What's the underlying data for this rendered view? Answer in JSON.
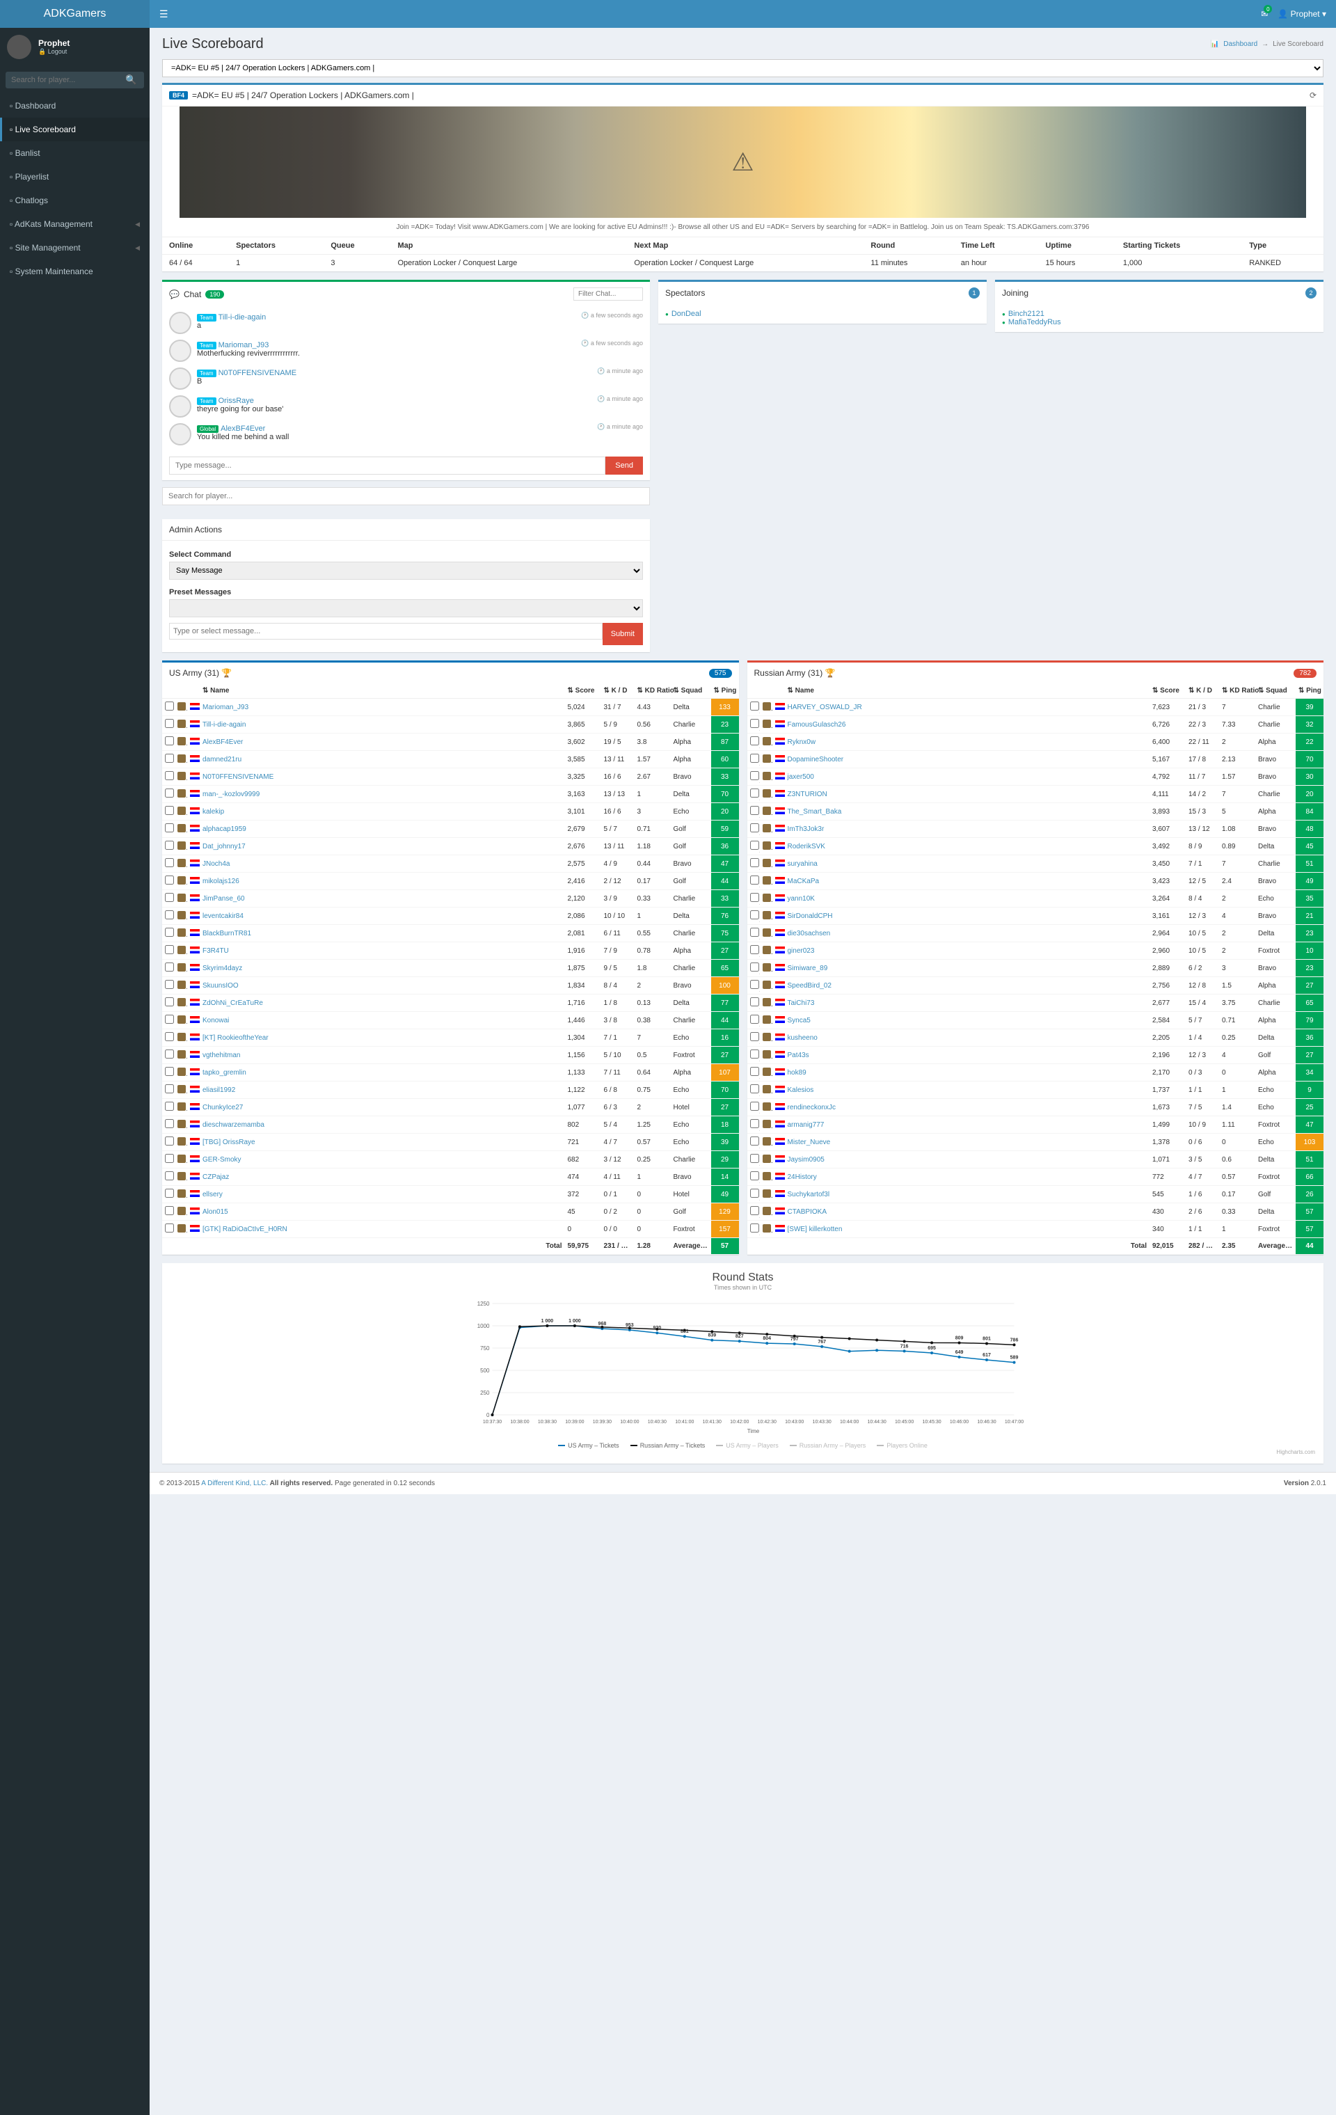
{
  "brand": "ADKGamers",
  "user": {
    "name": "Prophet",
    "logout": "Logout"
  },
  "top": {
    "user_drop": "Prophet",
    "mail_count": "0"
  },
  "search_ph": "Search for player...",
  "nav": [
    {
      "label": "Dashboard",
      "arrow": false
    },
    {
      "label": "Live Scoreboard",
      "arrow": false,
      "active": true
    },
    {
      "label": "Banlist",
      "arrow": false
    },
    {
      "label": "Playerlist",
      "arrow": false
    },
    {
      "label": "Chatlogs",
      "arrow": false
    },
    {
      "label": "AdKats Management",
      "arrow": true
    },
    {
      "label": "Site Management",
      "arrow": true
    },
    {
      "label": "System Maintenance",
      "arrow": false
    }
  ],
  "page_title": "Live Scoreboard",
  "crumb": {
    "home": "Dashboard",
    "here": "Live Scoreboard"
  },
  "server": {
    "select": "=ADK= EU #5 | 24/7 Operation Lockers | ADKGamers.com |",
    "tag": "BF4",
    "title": "=ADK= EU #5 | 24/7 Operation Lockers | ADKGamers.com |",
    "info": "Join =ADK= Today! Visit www.ADKGamers.com | We are looking for active EU Admins!!! :)- Browse all other US and EU =ADK= Servers by searching for =ADK= in Battlelog. Join us on Team Speak: TS.ADKGamers.com:3796",
    "headers": [
      "Online",
      "Spectators",
      "Queue",
      "Map",
      "Next Map",
      "Round",
      "Time Left",
      "Uptime",
      "Starting Tickets",
      "Type"
    ],
    "values": [
      "64 / 64",
      "1",
      "3",
      "Operation Locker / Conquest Large",
      "Operation Locker / Conquest Large",
      "11 minutes",
      "an hour",
      "15 hours",
      "1,000",
      "RANKED"
    ]
  },
  "chat": {
    "title": "Chat",
    "count": "190",
    "filter_ph": "Filter Chat...",
    "input_ph": "Type message...",
    "send": "Send",
    "player_search_ph": "Search for player...",
    "messages": [
      {
        "tag": "Team",
        "name": "Till-i-die-again",
        "text": "a",
        "time": "a few seconds ago"
      },
      {
        "tag": "Team",
        "name": "Marioman_J93",
        "text": "Motherfucking reviverrrrrrrrrrrr.",
        "time": "a few seconds ago"
      },
      {
        "tag": "Team",
        "name": "N0T0FFENSIVENAME",
        "text": "B",
        "time": "a minute ago"
      },
      {
        "tag": "Team",
        "name": "OrissRaye",
        "text": "theyre going for our base'",
        "time": "a minute ago"
      },
      {
        "tag": "Global",
        "name": "AlexBF4Ever",
        "text": "You killed me behind a wall",
        "time": "a minute ago"
      }
    ]
  },
  "spectators": {
    "title": "Spectators",
    "count": "1",
    "list": [
      "DonDeal"
    ]
  },
  "joining": {
    "title": "Joining",
    "count": "2",
    "list": [
      "Binch2121",
      "MafiaTeddyRus"
    ]
  },
  "admin": {
    "title": "Admin Actions",
    "cmd_label": "Select Command",
    "cmd": "Say Message",
    "preset_label": "Preset Messages",
    "preset": "",
    "msg_ph": "Type or select message...",
    "submit": "Submit"
  },
  "teams": {
    "us": {
      "name": "US Army (31)",
      "tickets": "575",
      "cols": [
        "",
        "",
        "",
        "Name",
        "Score",
        "K / D",
        "KD Ratio",
        "Squad",
        "Ping"
      ],
      "rows": [
        [
          "Marioman_J93",
          "5,024",
          "31 / 7",
          "4.43",
          "Delta",
          "133",
          "high"
        ],
        [
          "Till-i-die-again",
          "3,865",
          "5 / 9",
          "0.56",
          "Charlie",
          "23",
          ""
        ],
        [
          "AlexBF4Ever",
          "3,602",
          "19 / 5",
          "3.8",
          "Alpha",
          "87",
          ""
        ],
        [
          "damned21ru",
          "3,585",
          "13 / 11",
          "1.57",
          "Alpha",
          "60",
          ""
        ],
        [
          "N0T0FFENSIVENAME",
          "3,325",
          "16 / 6",
          "2.67",
          "Bravo",
          "33",
          ""
        ],
        [
          "man-_-kozlov9999",
          "3,163",
          "13 / 13",
          "1",
          "Delta",
          "70",
          ""
        ],
        [
          "kalekip",
          "3,101",
          "16 / 6",
          "3",
          "Echo",
          "20",
          ""
        ],
        [
          "alphacap1959",
          "2,679",
          "5 / 7",
          "0.71",
          "Golf",
          "59",
          ""
        ],
        [
          "Dat_johnny17",
          "2,676",
          "13 / 11",
          "1.18",
          "Golf",
          "36",
          ""
        ],
        [
          "JNoch4a",
          "2,575",
          "4 / 9",
          "0.44",
          "Bravo",
          "47",
          ""
        ],
        [
          "mikolajs126",
          "2,416",
          "2 / 12",
          "0.17",
          "Golf",
          "44",
          ""
        ],
        [
          "JimPanse_60",
          "2,120",
          "3 / 9",
          "0.33",
          "Charlie",
          "33",
          ""
        ],
        [
          "leventcakir84",
          "2,086",
          "10 / 10",
          "1",
          "Delta",
          "76",
          ""
        ],
        [
          "BlackBurnTR81",
          "2,081",
          "6 / 11",
          "0.55",
          "Charlie",
          "75",
          ""
        ],
        [
          "F3R4TU",
          "1,916",
          "7 / 9",
          "0.78",
          "Alpha",
          "27",
          ""
        ],
        [
          "Skyrim4dayz",
          "1,875",
          "9 / 5",
          "1.8",
          "Charlie",
          "65",
          ""
        ],
        [
          "SkuunsIOO",
          "1,834",
          "8 / 4",
          "2",
          "Bravo",
          "100",
          "high"
        ],
        [
          "ZdOhNi_CrEaTuRe",
          "1,716",
          "1 / 8",
          "0.13",
          "Delta",
          "77",
          ""
        ],
        [
          "Konowai",
          "1,446",
          "3 / 8",
          "0.38",
          "Charlie",
          "44",
          ""
        ],
        [
          "[KT] RookieoftheYear",
          "1,304",
          "7 / 1",
          "7",
          "Echo",
          "16",
          ""
        ],
        [
          "vgthehitman",
          "1,156",
          "5 / 10",
          "0.5",
          "Foxtrot",
          "27",
          ""
        ],
        [
          "tapko_gremlin",
          "1,133",
          "7 / 11",
          "0.64",
          "Alpha",
          "107",
          "high"
        ],
        [
          "eliasil1992",
          "1,122",
          "6 / 8",
          "0.75",
          "Echo",
          "70",
          ""
        ],
        [
          "ChunkyIce27",
          "1,077",
          "6 / 3",
          "2",
          "Hotel",
          "27",
          ""
        ],
        [
          "dieschwarzemamba",
          "802",
          "5 / 4",
          "1.25",
          "Echo",
          "18",
          ""
        ],
        [
          "[TBG] OrissRaye",
          "721",
          "4 / 7",
          "0.57",
          "Echo",
          "39",
          ""
        ],
        [
          "GER-Smoky",
          "682",
          "3 / 12",
          "0.25",
          "Charlie",
          "29",
          ""
        ],
        [
          "CZPajaz",
          "474",
          "4 / 11",
          "1",
          "Bravo",
          "14",
          ""
        ],
        [
          "ellsery",
          "372",
          "0 / 1",
          "0",
          "Hotel",
          "49",
          ""
        ],
        [
          "Alon015",
          "45",
          "0 / 2",
          "0",
          "Golf",
          "129",
          "high"
        ],
        [
          "[GTK] RaDiOaCtIvE_H0RN",
          "0",
          "0 / 0",
          "0",
          "Foxtrot",
          "157",
          "high"
        ]
      ],
      "totals": [
        "Total",
        "59,975",
        "231 / 226",
        "1.28",
        "Average Ping",
        "57"
      ]
    },
    "ru": {
      "name": "Russian Army (31)",
      "tickets": "782",
      "rows": [
        [
          "HARVEY_OSWALD_JR",
          "7,623",
          "21 / 3",
          "7",
          "Charlie",
          "39",
          ""
        ],
        [
          "FamousGulasch26",
          "6,726",
          "22 / 3",
          "7.33",
          "Charlie",
          "32",
          ""
        ],
        [
          "Ryknx0w",
          "6,400",
          "22 / 11",
          "2",
          "Alpha",
          "22",
          ""
        ],
        [
          "DopamineShooter",
          "5,167",
          "17 / 8",
          "2.13",
          "Bravo",
          "70",
          ""
        ],
        [
          "jaxer500",
          "4,792",
          "11 / 7",
          "1.57",
          "Bravo",
          "30",
          ""
        ],
        [
          "Z3NTURION",
          "4,111",
          "14 / 2",
          "7",
          "Charlie",
          "20",
          ""
        ],
        [
          "The_Smart_Baka",
          "3,893",
          "15 / 3",
          "5",
          "Alpha",
          "84",
          ""
        ],
        [
          "ImTh3Jok3r",
          "3,607",
          "13 / 12",
          "1.08",
          "Bravo",
          "48",
          ""
        ],
        [
          "RoderikSVK",
          "3,492",
          "8 / 9",
          "0.89",
          "Delta",
          "45",
          ""
        ],
        [
          "suryahina",
          "3,450",
          "7 / 1",
          "7",
          "Charlie",
          "51",
          ""
        ],
        [
          "MaCKaPa",
          "3,423",
          "12 / 5",
          "2.4",
          "Bravo",
          "49",
          ""
        ],
        [
          "yann10K",
          "3,264",
          "8 / 4",
          "2",
          "Echo",
          "35",
          ""
        ],
        [
          "SirDonaldCPH",
          "3,161",
          "12 / 3",
          "4",
          "Bravo",
          "21",
          ""
        ],
        [
          "die30sachsen",
          "2,964",
          "10 / 5",
          "2",
          "Delta",
          "23",
          ""
        ],
        [
          "giner023",
          "2,960",
          "10 / 5",
          "2",
          "Foxtrot",
          "10",
          ""
        ],
        [
          "Simiware_89",
          "2,889",
          "6 / 2",
          "3",
          "Bravo",
          "23",
          ""
        ],
        [
          "SpeedBird_02",
          "2,756",
          "12 / 8",
          "1.5",
          "Alpha",
          "27",
          ""
        ],
        [
          "TaiChi73",
          "2,677",
          "15 / 4",
          "3.75",
          "Charlie",
          "65",
          ""
        ],
        [
          "Synca5",
          "2,584",
          "5 / 7",
          "0.71",
          "Alpha",
          "79",
          ""
        ],
        [
          "kusheeno",
          "2,205",
          "1 / 4",
          "0.25",
          "Delta",
          "36",
          ""
        ],
        [
          "Pat43s",
          "2,196",
          "12 / 3",
          "4",
          "Golf",
          "27",
          ""
        ],
        [
          "hok89",
          "2,170",
          "0 / 3",
          "0",
          "Alpha",
          "34",
          ""
        ],
        [
          "Kalesios",
          "1,737",
          "1 / 1",
          "1",
          "Echo",
          "9",
          ""
        ],
        [
          "rendineckonxJc",
          "1,673",
          "7 / 5",
          "1.4",
          "Echo",
          "25",
          ""
        ],
        [
          "armanig777",
          "1,499",
          "10 / 9",
          "1.11",
          "Foxtrot",
          "47",
          ""
        ],
        [
          "Mister_Nueve",
          "1,378",
          "0 / 6",
          "0",
          "Echo",
          "103",
          "high"
        ],
        [
          "Jaysim0905",
          "1,071",
          "3 / 5",
          "0.6",
          "Delta",
          "51",
          ""
        ],
        [
          "24History",
          "772",
          "4 / 7",
          "0.57",
          "Foxtrot",
          "66",
          ""
        ],
        [
          "Suchykartof3l",
          "545",
          "1 / 6",
          "0.17",
          "Golf",
          "26",
          ""
        ],
        [
          "CTABPIOKA",
          "430",
          "2 / 6",
          "0.33",
          "Delta",
          "57",
          ""
        ],
        [
          "[SWE] killerkotten",
          "340",
          "1 / 1",
          "1",
          "Foxtrot",
          "57",
          ""
        ]
      ],
      "totals": [
        "Total",
        "92,015",
        "282 / 158",
        "2.35",
        "Average Ping",
        "44"
      ]
    }
  },
  "round_stats": {
    "title": "Round Stats",
    "sub": "Times shown in UTC",
    "ylim": [
      0,
      1250
    ],
    "ystep": 250,
    "xlabels": [
      "10:37:30",
      "10:38:00",
      "10:38:30",
      "10:39:00",
      "10:39:30",
      "10:40:00",
      "10:40:30",
      "10:41:00",
      "10:41:30",
      "10:42:00",
      "10:42:30",
      "10:43:00",
      "10:43:30",
      "10:44:00",
      "10:44:30",
      "10:45:00",
      "10:45:30",
      "10:46:00",
      "10:46:30",
      "10:47:00"
    ],
    "series": [
      {
        "name": "US Army – Tickets",
        "color": "#0073b7",
        "data": [
          0,
          980,
          1000,
          1000,
          968,
          953,
          920,
          881,
          839,
          827,
          804,
          797,
          767,
          714,
          725,
          716,
          695,
          649,
          617,
          589
        ],
        "labels": [
          null,
          null,
          "1 000",
          "1 000",
          "968",
          "953",
          "920",
          "881",
          "839",
          "827",
          "804",
          "797",
          "767",
          null,
          null,
          "716",
          "695",
          "649",
          "617",
          "589"
        ]
      },
      {
        "name": "Russian Army – Tickets",
        "color": "#111111",
        "data": [
          0,
          990,
          1000,
          1000,
          985,
          975,
          962,
          950,
          935,
          920,
          905,
          885,
          870,
          855,
          840,
          825,
          810,
          809,
          801,
          786
        ],
        "labels": [
          null,
          null,
          null,
          null,
          null,
          null,
          null,
          null,
          null,
          null,
          null,
          null,
          null,
          null,
          null,
          null,
          null,
          "809",
          "801",
          "786"
        ]
      }
    ],
    "legend": [
      {
        "label": "US Army – Tickets",
        "color": "#0073b7"
      },
      {
        "label": "Russian Army – Tickets",
        "color": "#111111"
      },
      {
        "label": "US Army – Players",
        "color": "#bbb",
        "dim": true
      },
      {
        "label": "Russian Army – Players",
        "color": "#bbb",
        "dim": true
      },
      {
        "label": "Players Online",
        "color": "#bbb",
        "dim": true
      }
    ],
    "credits": "Highcharts.com"
  },
  "footer": {
    "copy": "© 2013-2015 ",
    "link": "A Different Kind, LLC.",
    "rights": " All rights reserved. ",
    "gen": "Page generated in 0.12 seconds",
    "ver_label": "Version ",
    "ver": "2.0.1"
  }
}
